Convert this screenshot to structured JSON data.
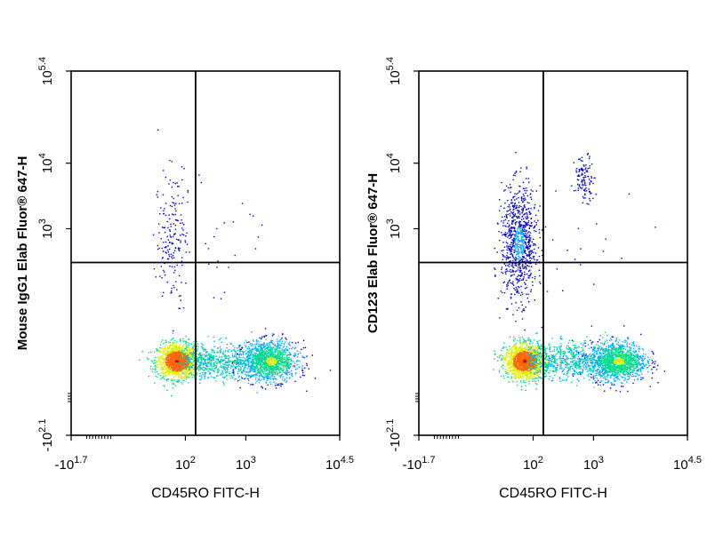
{
  "chart_data": [
    {
      "type": "scatter",
      "subtype": "flow-cytometry-density-dot-plot",
      "xlabel": "CD45RO FITC-H",
      "ylabel": "Mouse IgG1 Elab Fluor® 647-H",
      "x_scale": "biexponential",
      "y_scale": "biexponential",
      "xlim": [
        -50.1,
        31622.8
      ],
      "ylim": [
        -125.9,
        251188.6
      ],
      "x_ticks": [
        {
          "base": "-10",
          "exp": "1.7"
        },
        {
          "base": "10",
          "exp": "2"
        },
        {
          "base": "10",
          "exp": "3"
        },
        {
          "base": "10",
          "exp": "4.5"
        }
      ],
      "y_ticks": [
        {
          "base": "-10",
          "exp": "2.1"
        },
        {
          "base": "10",
          "exp": "3"
        },
        {
          "base": "10",
          "exp": "4"
        },
        {
          "base": "10",
          "exp": "5.4"
        }
      ],
      "quadrant_gate": {
        "x": 150,
        "y": 300
      },
      "populations": [
        {
          "label": "CD45RO- negative",
          "x_center": 70,
          "y_center": 0,
          "density": "high"
        },
        {
          "label": "CD45RO+ negative",
          "x_center": 2500,
          "y_center": 0,
          "density": "medium"
        },
        {
          "label": "upper-left sparse",
          "x_center": 60,
          "y_center": 600,
          "density": "low"
        }
      ],
      "density_colors": [
        "#0000cc",
        "#00aaff",
        "#00dd88",
        "#ddee00",
        "#ff6600",
        "#dd0000"
      ],
      "grid": false
    },
    {
      "type": "scatter",
      "subtype": "flow-cytometry-density-dot-plot",
      "xlabel": "CD45RO FITC-H",
      "ylabel": "CD123 Elab Fluor® 647-H",
      "x_scale": "biexponential",
      "y_scale": "biexponential",
      "xlim": [
        -50.1,
        31622.8
      ],
      "ylim": [
        -125.9,
        251188.6
      ],
      "x_ticks": [
        {
          "base": "-10",
          "exp": "1.7"
        },
        {
          "base": "10",
          "exp": "2"
        },
        {
          "base": "10",
          "exp": "3"
        },
        {
          "base": "10",
          "exp": "4.5"
        }
      ],
      "y_ticks": [
        {
          "base": "-10",
          "exp": "2.1"
        },
        {
          "base": "10",
          "exp": "3"
        },
        {
          "base": "10",
          "exp": "4"
        },
        {
          "base": "10",
          "exp": "5.4"
        }
      ],
      "quadrant_gate": {
        "x": 150,
        "y": 300
      },
      "populations": [
        {
          "label": "CD45RO- negative",
          "x_center": 70,
          "y_center": 0,
          "density": "high"
        },
        {
          "label": "CD45RO+ negative",
          "x_center": 2500,
          "y_center": 0,
          "density": "medium"
        },
        {
          "label": "CD123+ CD45RO-",
          "x_center": 60,
          "y_center": 700,
          "density": "medium"
        },
        {
          "label": "CD123 high CD45RO+",
          "x_center": 700,
          "y_center": 6000,
          "density": "low"
        }
      ],
      "density_colors": [
        "#0000cc",
        "#00aaff",
        "#00dd88",
        "#ddee00",
        "#ff6600",
        "#dd0000"
      ],
      "grid": false
    }
  ]
}
